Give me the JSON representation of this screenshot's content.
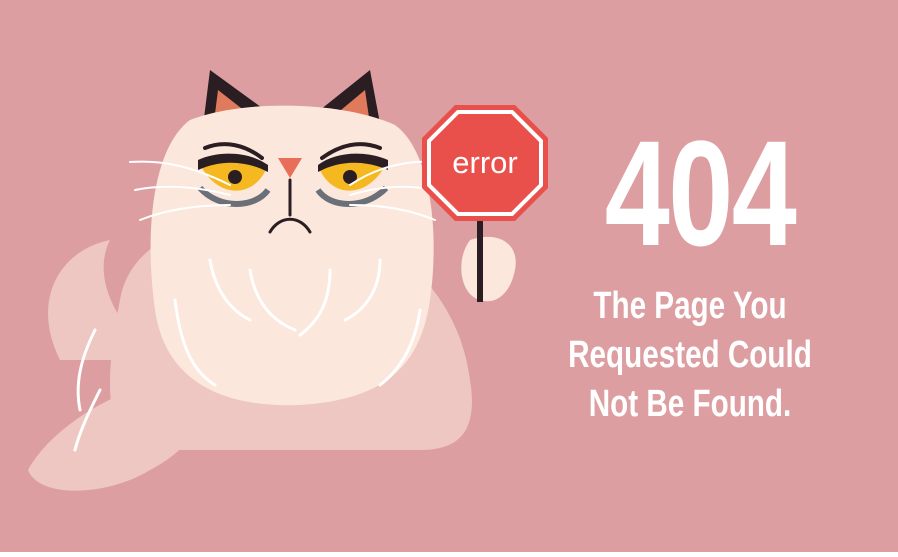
{
  "sign": {
    "label": "error"
  },
  "error": {
    "code": "404",
    "message_lines": [
      "The Page You",
      "Requested Could",
      "Not Be Found."
    ]
  },
  "colors": {
    "background": "#dd9ea1",
    "cat_fur": "#fbe7dc",
    "cat_shadow": "#eec6c2",
    "sign_red": "#e9504c",
    "eye_yellow": "#f5b820",
    "text": "#ffffff"
  },
  "icons": {
    "illustration": "grumpy-cat-icon",
    "sign": "stop-sign-icon"
  }
}
